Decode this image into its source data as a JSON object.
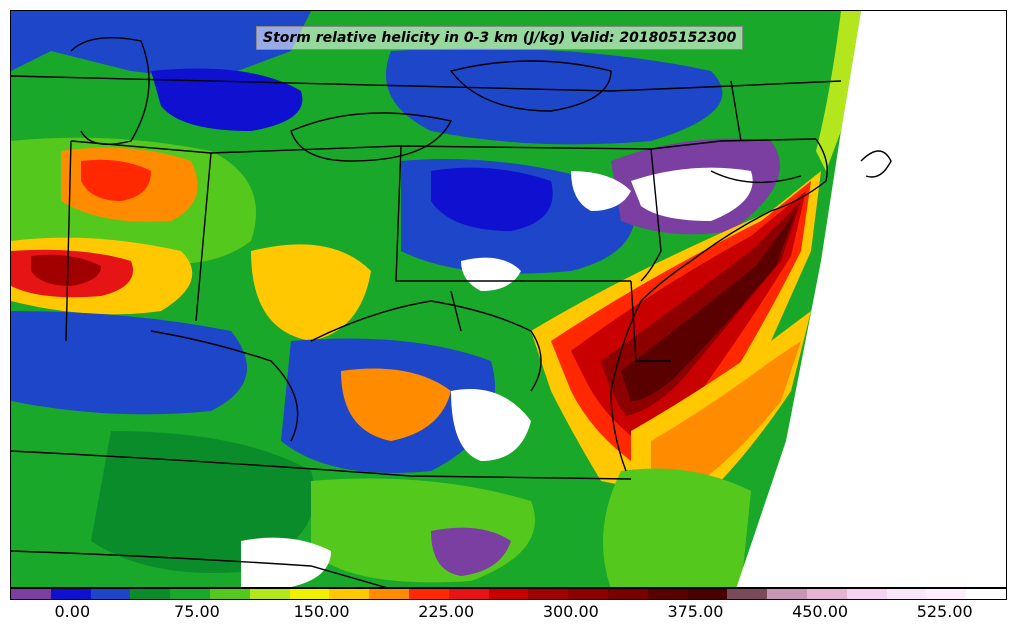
{
  "title": "Storm relative helicity in 0-3 km (J/kg) Valid: 201805152300",
  "colorbar": {
    "colors": [
      "#7a3fa0",
      "#1010d0",
      "#1e46c8",
      "#0a8c2a",
      "#1aa82a",
      "#55c81e",
      "#b4e61e",
      "#f0f000",
      "#ffc800",
      "#ff8c00",
      "#ff2800",
      "#e61414",
      "#c80000",
      "#a00000",
      "#8c0000",
      "#780000",
      "#5a0000",
      "#4a0000",
      "#7a4a5a",
      "#c896b4",
      "#e6b4d2",
      "#f5d2f0",
      "#fae6fa",
      "#ffeeff",
      "#ffffff"
    ],
    "tick_labels": [
      "0.00",
      "75.00",
      "150.00",
      "225.00",
      "300.00",
      "375.00",
      "450.00",
      "525.00"
    ],
    "tick_values": [
      0,
      75,
      150,
      225,
      300,
      375,
      450,
      525
    ],
    "range": [
      -37.5,
      562.5
    ]
  },
  "map": {
    "background_field": "#1aa82a",
    "boundary_color": "#000000",
    "missing_color": "#ffffff"
  }
}
